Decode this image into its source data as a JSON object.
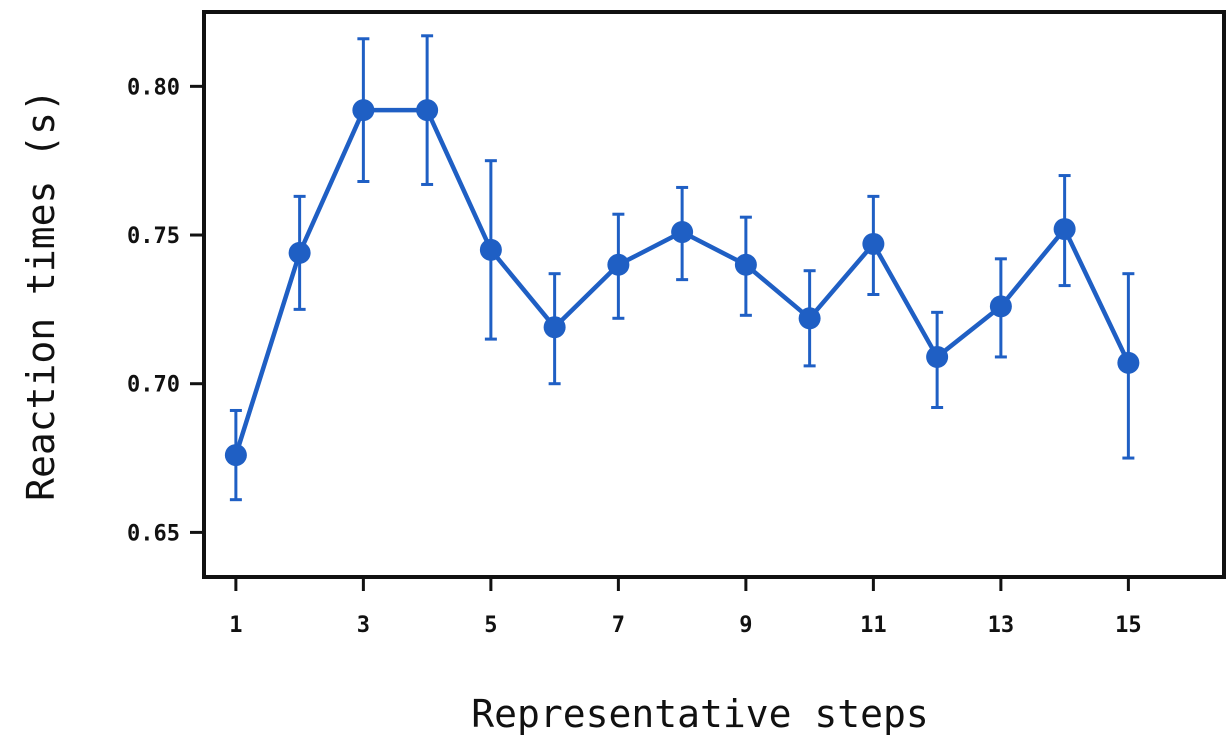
{
  "chart_data": {
    "type": "line",
    "xlabel": "Representative steps",
    "ylabel": "Reaction times (s)",
    "xlim": [
      0.5,
      16.5
    ],
    "ylim": [
      0.635,
      0.825
    ],
    "x_ticks": [
      1,
      3,
      5,
      7,
      9,
      11,
      13,
      15
    ],
    "y_ticks": [
      0.65,
      0.7,
      0.75,
      0.8
    ],
    "y_tick_labels": [
      "0.65",
      "0.70",
      "0.75",
      "0.80"
    ],
    "grid": false,
    "series": [
      {
        "color": "#1f5fc4",
        "x": [
          1,
          2,
          3,
          4,
          5,
          6,
          7,
          8,
          9,
          10,
          11,
          12,
          13,
          14,
          15
        ],
        "y": [
          0.676,
          0.744,
          0.792,
          0.792,
          0.745,
          0.719,
          0.74,
          0.751,
          0.74,
          0.722,
          0.747,
          0.709,
          0.726,
          0.752,
          0.707
        ],
        "err_low": [
          0.661,
          0.725,
          0.768,
          0.767,
          0.715,
          0.7,
          0.722,
          0.735,
          0.723,
          0.706,
          0.73,
          0.692,
          0.709,
          0.733,
          0.675
        ],
        "err_high": [
          0.691,
          0.763,
          0.816,
          0.817,
          0.775,
          0.737,
          0.757,
          0.766,
          0.756,
          0.738,
          0.763,
          0.724,
          0.742,
          0.77,
          0.737
        ]
      }
    ]
  }
}
